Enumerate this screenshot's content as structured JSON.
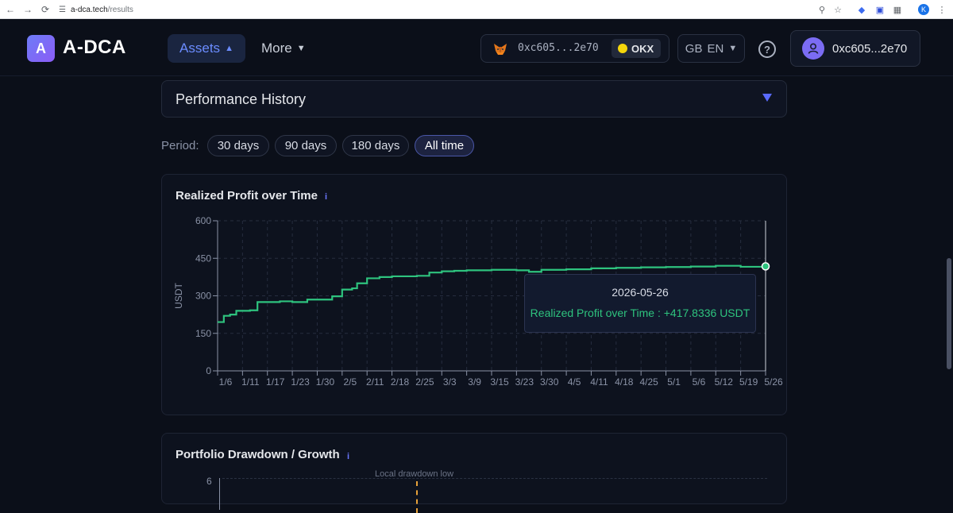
{
  "browser": {
    "url_host": "a-dca.tech",
    "url_path": "/results",
    "profile_initial": "K"
  },
  "header": {
    "logo_letter": "A",
    "logo_text": "A-DCA",
    "nav_assets": "Assets",
    "nav_more": "More",
    "wallet_address": "0xc605...2e70",
    "exchange": "OKX",
    "region": "GB",
    "language": "EN",
    "help": "?",
    "account_address": "0xc605...2e70"
  },
  "performance": {
    "title": "Performance History",
    "period_label": "Period:",
    "periods": [
      "30 days",
      "90 days",
      "180 days",
      "All time"
    ],
    "active_period": "All time"
  },
  "realized_card": {
    "title": "Realized Profit over Time",
    "info": "i",
    "tooltip_date": "2026-05-26",
    "tooltip_value": "Realized Profit over Time : +417.8336 USDT"
  },
  "drawdown_card": {
    "title": "Portfolio Drawdown / Growth",
    "info": "i",
    "first_ytick": "6",
    "note": "Local drawdown low"
  },
  "colors": {
    "background": "#0b0f19",
    "line": "#2ec37e",
    "accent": "#5a6bff"
  },
  "chart_data": {
    "type": "line",
    "title": "Realized Profit over Time",
    "xlabel": "",
    "ylabel": "USDT",
    "ylim": [
      0,
      600
    ],
    "yticks": [
      0,
      150,
      300,
      450,
      600
    ],
    "grid": true,
    "x_tick_labels": [
      "1/6",
      "1/11",
      "1/17",
      "1/23",
      "1/30",
      "2/5",
      "2/11",
      "2/18",
      "2/25",
      "3/3",
      "3/9",
      "3/15",
      "3/23",
      "3/30",
      "4/5",
      "4/11",
      "4/18",
      "4/25",
      "5/1",
      "5/6",
      "5/12",
      "5/19",
      "5/26"
    ],
    "series": [
      {
        "values": [
          [
            0,
            195
          ],
          [
            0.25,
            220
          ],
          [
            0.5,
            225
          ],
          [
            0.75,
            240
          ],
          [
            1.3,
            242
          ],
          [
            1.6,
            275
          ],
          [
            2.5,
            278
          ],
          [
            3.0,
            275
          ],
          [
            3.6,
            285
          ],
          [
            4.2,
            285
          ],
          [
            4.6,
            298
          ],
          [
            5.0,
            325
          ],
          [
            5.4,
            330
          ],
          [
            5.6,
            350
          ],
          [
            6.0,
            370
          ],
          [
            6.5,
            375
          ],
          [
            7.0,
            378
          ],
          [
            7.5,
            378
          ],
          [
            8.0,
            380
          ],
          [
            8.5,
            393
          ],
          [
            9.0,
            398
          ],
          [
            9.5,
            400
          ],
          [
            10.0,
            402
          ],
          [
            11.0,
            404
          ],
          [
            12.0,
            402
          ],
          [
            12.5,
            396
          ],
          [
            13.0,
            404
          ],
          [
            13.5,
            404
          ],
          [
            14.0,
            406
          ],
          [
            15.0,
            410
          ],
          [
            16.0,
            412
          ],
          [
            17.0,
            414
          ],
          [
            18.0,
            415
          ],
          [
            19.0,
            417
          ],
          [
            20.0,
            420
          ],
          [
            21.0,
            416
          ],
          [
            22.0,
            417.8336
          ]
        ]
      }
    ],
    "tooltip": {
      "date": "2026-05-26",
      "value": 417.8336
    }
  }
}
